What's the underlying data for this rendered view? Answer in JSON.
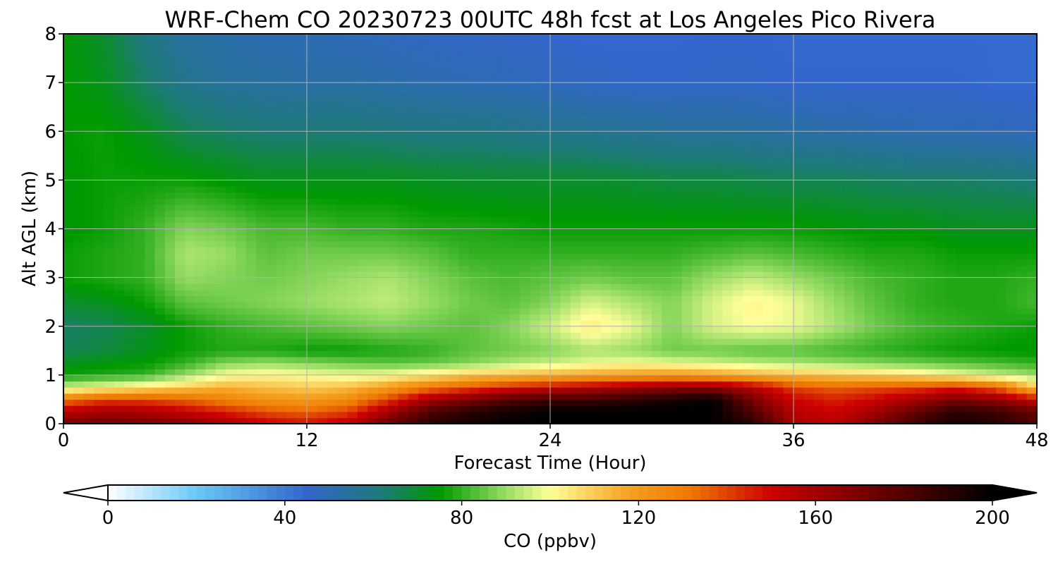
{
  "chart_data": {
    "type": "heatmap",
    "title": "WRF-Chem CO  20230723 00UTC 48h fcst at Los Angeles Pico Rivera",
    "xlabel": "Forecast Time (Hour)",
    "ylabel": "Alt AGL (km)",
    "xlim": [
      0,
      48
    ],
    "ylim": [
      0,
      8
    ],
    "xticks": [
      "0",
      "12",
      "24",
      "36",
      "48"
    ],
    "yticks": [
      "0",
      "1",
      "2",
      "3",
      "4",
      "5",
      "6",
      "7",
      "8"
    ],
    "grid": true,
    "colorbar": {
      "label": "CO  (ppbv)",
      "min": 0,
      "max": 200,
      "ticks": [
        "0",
        "40",
        "80",
        "120",
        "160",
        "200"
      ],
      "extend": "both",
      "under_color": "#ffffff",
      "over_color": "#000000",
      "stops": [
        {
          "v": 0,
          "c": "#ffffff"
        },
        {
          "v": 20,
          "c": "#6ac8f5"
        },
        {
          "v": 45,
          "c": "#3366cc"
        },
        {
          "v": 62,
          "c": "#1e7a78"
        },
        {
          "v": 75,
          "c": "#009900"
        },
        {
          "v": 90,
          "c": "#99dd66"
        },
        {
          "v": 100,
          "c": "#ffff99"
        },
        {
          "v": 118,
          "c": "#f5a020"
        },
        {
          "v": 132,
          "c": "#ee7700"
        },
        {
          "v": 150,
          "c": "#cc0000"
        },
        {
          "v": 175,
          "c": "#660000"
        },
        {
          "v": 200,
          "c": "#000000"
        }
      ]
    },
    "hours": [
      0,
      2,
      4,
      6,
      8,
      10,
      12,
      14,
      16,
      18,
      20,
      22,
      24,
      26,
      28,
      30,
      32,
      34,
      36,
      38,
      40,
      42,
      44,
      46,
      48
    ],
    "altitudes_km": [
      0,
      0.25,
      0.5,
      0.75,
      1.0,
      1.25,
      1.5,
      2.0,
      2.5,
      3.0,
      3.5,
      4.0,
      5.0,
      6.0,
      7.0,
      8.0
    ],
    "values_ppbv": [
      [
        170,
        175,
        172,
        168,
        160,
        152,
        148,
        155,
        175,
        190,
        195,
        200,
        200,
        200,
        200,
        200,
        200,
        190,
        160,
        155,
        170,
        185,
        195,
        190,
        180
      ],
      [
        155,
        160,
        158,
        152,
        145,
        138,
        135,
        140,
        160,
        180,
        190,
        195,
        200,
        200,
        200,
        200,
        200,
        180,
        155,
        150,
        160,
        175,
        190,
        185,
        175
      ],
      [
        130,
        140,
        140,
        135,
        128,
        122,
        120,
        125,
        140,
        160,
        170,
        180,
        185,
        185,
        190,
        195,
        200,
        170,
        150,
        145,
        150,
        160,
        170,
        165,
        150
      ],
      [
        95,
        100,
        105,
        110,
        115,
        112,
        110,
        112,
        120,
        130,
        138,
        145,
        150,
        155,
        160,
        165,
        165,
        155,
        140,
        135,
        138,
        140,
        145,
        135,
        110
      ],
      [
        76,
        78,
        80,
        90,
        100,
        102,
        100,
        98,
        100,
        105,
        110,
        112,
        115,
        118,
        120,
        122,
        120,
        115,
        112,
        110,
        108,
        105,
        100,
        95,
        90
      ],
      [
        72,
        74,
        75,
        80,
        88,
        90,
        88,
        86,
        84,
        85,
        88,
        92,
        95,
        98,
        100,
        98,
        96,
        94,
        92,
        90,
        88,
        86,
        84,
        82,
        80
      ],
      [
        66,
        68,
        72,
        76,
        78,
        78,
        76,
        76,
        78,
        80,
        84,
        86,
        88,
        92,
        90,
        86,
        86,
        84,
        84,
        82,
        80,
        78,
        76,
        75,
        74
      ],
      [
        64,
        66,
        70,
        76,
        80,
        82,
        84,
        86,
        88,
        86,
        84,
        88,
        95,
        104,
        98,
        88,
        96,
        100,
        98,
        92,
        86,
        82,
        80,
        78,
        76
      ],
      [
        70,
        72,
        76,
        84,
        86,
        88,
        90,
        92,
        94,
        90,
        86,
        84,
        88,
        96,
        92,
        88,
        96,
        102,
        98,
        90,
        84,
        80,
        78,
        78,
        82
      ],
      [
        76,
        78,
        80,
        90,
        88,
        86,
        88,
        90,
        92,
        88,
        84,
        82,
        84,
        86,
        84,
        84,
        90,
        94,
        90,
        86,
        82,
        80,
        78,
        78,
        80
      ],
      [
        76,
        78,
        80,
        92,
        90,
        84,
        86,
        86,
        86,
        84,
        80,
        80,
        80,
        80,
        80,
        80,
        82,
        84,
        82,
        80,
        78,
        78,
        76,
        76,
        76
      ],
      [
        74,
        76,
        80,
        88,
        86,
        82,
        82,
        80,
        80,
        78,
        78,
        77,
        76,
        76,
        76,
        76,
        76,
        76,
        76,
        75,
        74,
        74,
        72,
        72,
        72
      ],
      [
        74,
        76,
        76,
        76,
        74,
        72,
        72,
        72,
        72,
        71,
        70,
        70,
        70,
        70,
        69,
        68,
        68,
        67,
        66,
        66,
        65,
        64,
        64,
        63,
        62
      ],
      [
        75,
        76,
        72,
        66,
        64,
        62,
        62,
        62,
        61,
        60,
        60,
        59,
        58,
        57,
        56,
        55,
        55,
        54,
        53,
        52,
        51,
        50,
        50,
        49,
        48
      ],
      [
        75,
        72,
        64,
        58,
        55,
        54,
        53,
        53,
        52,
        51,
        50,
        49,
        48,
        47,
        46,
        46,
        46,
        46,
        45,
        45,
        45,
        45,
        45,
        44,
        44
      ],
      [
        74,
        70,
        60,
        54,
        52,
        50,
        50,
        49,
        48,
        47,
        46,
        46,
        45,
        44,
        44,
        44,
        45,
        45,
        44,
        44,
        44,
        44,
        44,
        44,
        44
      ]
    ]
  }
}
